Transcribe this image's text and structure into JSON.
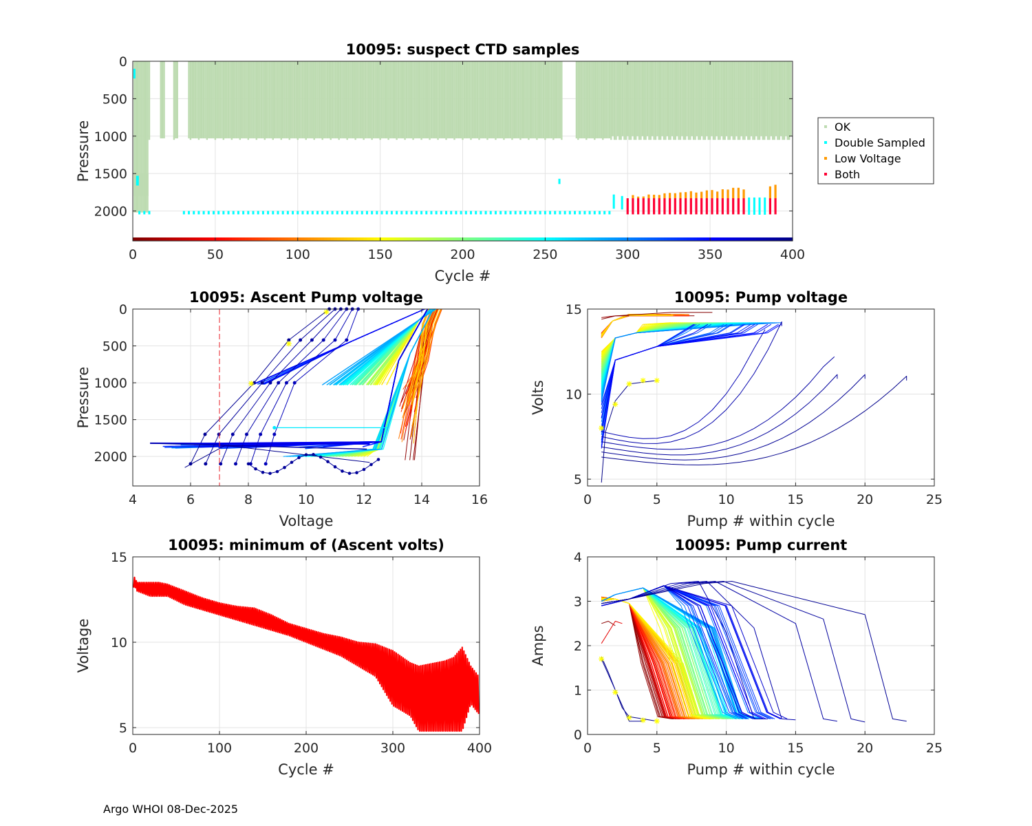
{
  "footer": "Argo WHOI 08-Dec-2025",
  "chart_data": [
    {
      "id": "suspect",
      "type": "scatter",
      "title": "10095: suspect CTD samples",
      "xlabel": "Cycle #",
      "ylabel": "Pressure",
      "xlim": [
        0,
        400
      ],
      "ylim": [
        0,
        2400
      ],
      "y_reversed": true,
      "xticks": [
        0,
        50,
        100,
        150,
        200,
        250,
        300,
        350,
        400
      ],
      "yticks": [
        0,
        500,
        1000,
        1500,
        2000
      ],
      "legend": [
        {
          "label": "OK",
          "color": "#bddbb1"
        },
        {
          "label": "Double Sampled",
          "color": "#00ffff"
        },
        {
          "label": "Low Voltage",
          "color": "#ff9900"
        },
        {
          "label": "Both",
          "color": "#ff0033"
        }
      ],
      "legend_position": "outside-right",
      "colorbar": "cycle (0-400, jet reversed)",
      "approx_profile_depth": {
        "cycles_1_10": 2000,
        "cycles_10_291": 1030,
        "cycles_291_400": 1030
      },
      "double_sampled_depth": 2020,
      "low_voltage_onset_cycle": 300,
      "both_range_pressure": [
        1830,
        2040
      ],
      "low_voltage_range_pressure": [
        1640,
        1830
      ]
    },
    {
      "id": "ascent",
      "type": "line",
      "title": "10095: Ascent Pump voltage",
      "xlabel": "Voltage",
      "ylabel": "Pressure",
      "xlim": [
        4,
        16
      ],
      "ylim": [
        0,
        2400
      ],
      "y_reversed": true,
      "xticks": [
        4,
        6,
        8,
        10,
        12,
        14,
        16
      ],
      "yticks": [
        0,
        500,
        1000,
        1500,
        2000
      ],
      "threshold_voltage": 7,
      "color_by": "cycle (jet reversed)"
    },
    {
      "id": "pumpvolt",
      "type": "line",
      "title": "10095: Pump voltage",
      "xlabel": "Pump # within cycle",
      "ylabel": "Volts",
      "xlim": [
        0,
        25
      ],
      "ylim": [
        4.6,
        15
      ],
      "xticks": [
        0,
        5,
        10,
        15,
        20,
        25
      ],
      "yticks": [
        5,
        10,
        15
      ],
      "color_by": "cycle (jet reversed)"
    },
    {
      "id": "minvolt",
      "type": "line",
      "title": "10095: minimum of (Ascent volts)",
      "xlabel": "Cycle #",
      "ylabel": "Voltage",
      "xlim": [
        0,
        400
      ],
      "ylim": [
        4.6,
        15
      ],
      "xticks": [
        0,
        100,
        200,
        300,
        400
      ],
      "yticks": [
        5,
        10,
        15
      ],
      "series_color": "#ff0000",
      "x": [
        1,
        2,
        5,
        10,
        20,
        30,
        40,
        60,
        80,
        100,
        120,
        140,
        160,
        180,
        200,
        220,
        240,
        260,
        280,
        300,
        320,
        330,
        340,
        350,
        360,
        370,
        380,
        390,
        399
      ],
      "y_high": [
        14.4,
        13.8,
        13.5,
        13.5,
        13.5,
        13.5,
        13.4,
        13.0,
        12.6,
        12.3,
        12.1,
        12.0,
        11.6,
        11.1,
        10.8,
        10.5,
        10.3,
        10.0,
        9.9,
        9.5,
        8.8,
        8.6,
        8.7,
        8.8,
        8.9,
        9.1,
        9.7,
        8.6,
        8.0
      ],
      "y_low": [
        13.2,
        13.3,
        13.0,
        12.9,
        12.7,
        12.7,
        12.7,
        12.2,
        11.9,
        11.6,
        11.3,
        11.0,
        10.7,
        10.4,
        10.0,
        9.6,
        9.2,
        8.6,
        8.0,
        6.3,
        5.7,
        4.8,
        4.8,
        4.8,
        4.8,
        4.8,
        4.8,
        6.4,
        5.8
      ]
    },
    {
      "id": "pumpcur",
      "type": "line",
      "title": "10095: Pump current",
      "xlabel": "Pump # within cycle",
      "ylabel": "Amps",
      "xlim": [
        0,
        25
      ],
      "ylim": [
        0,
        4
      ],
      "xticks": [
        0,
        5,
        10,
        15,
        20,
        25
      ],
      "yticks": [
        0,
        1,
        2,
        3,
        4
      ],
      "color_by": "cycle (jet reversed)"
    }
  ]
}
